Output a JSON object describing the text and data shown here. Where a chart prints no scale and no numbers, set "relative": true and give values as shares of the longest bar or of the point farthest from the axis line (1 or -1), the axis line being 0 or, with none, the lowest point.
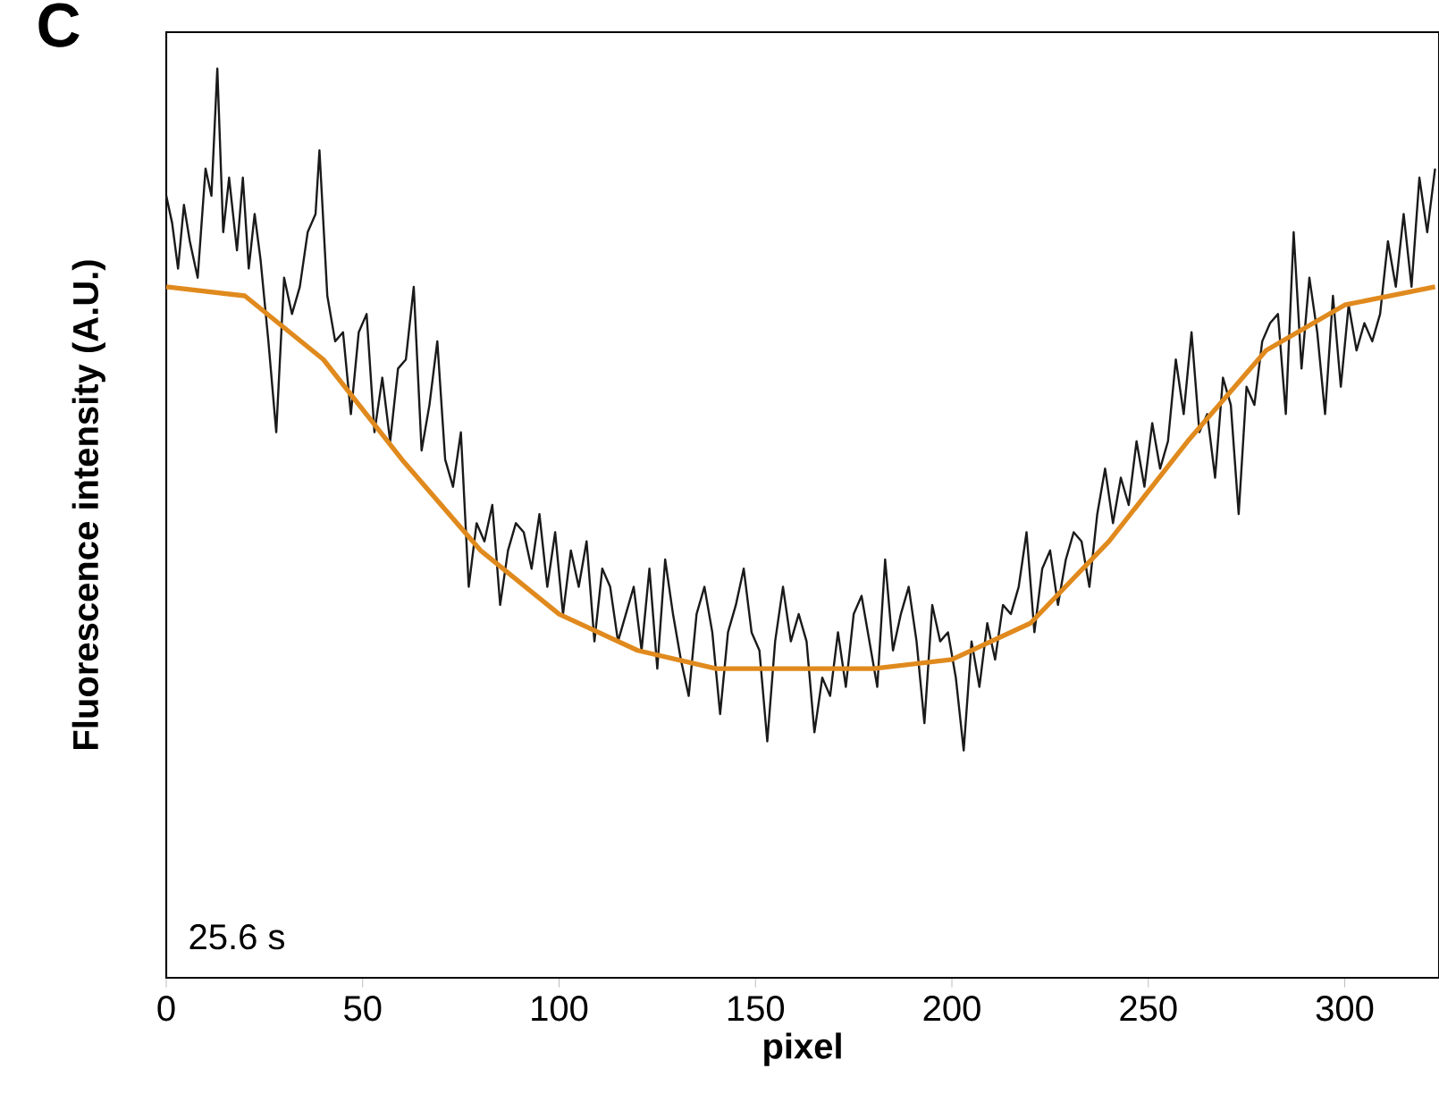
{
  "chart_data": {
    "type": "line",
    "relative": true,
    "xlabel": "pixel",
    "ylabel": "Fluorescence intensity (A.U.)",
    "annotations": [
      "C",
      "25.6 s"
    ],
    "xlim": [
      0,
      324
    ],
    "xticks": [
      0,
      50,
      100,
      150,
      200,
      250,
      300
    ],
    "grid": false,
    "marker": "none",
    "line_style": "solid",
    "series": [
      {
        "color": "#1a1a1a",
        "x": [
          0,
          1.5,
          3,
          4.5,
          6,
          8,
          10,
          11.5,
          13,
          14.5,
          16,
          18,
          19.5,
          21,
          22.5,
          24,
          26,
          28,
          30,
          32,
          34,
          36,
          38,
          39,
          41,
          43,
          45,
          47,
          49,
          51,
          53,
          55,
          57,
          59,
          61,
          63,
          65,
          67,
          69,
          71,
          73,
          75,
          77,
          79,
          81,
          83,
          85,
          87,
          89,
          91,
          93,
          95,
          97,
          99,
          101,
          103,
          105,
          107,
          109,
          111,
          113,
          115,
          117,
          119,
          121,
          123,
          125,
          127,
          129,
          131,
          133,
          135,
          137,
          139,
          141,
          143,
          145,
          147,
          149,
          151,
          153,
          155,
          157,
          159,
          161,
          163,
          165,
          167,
          169,
          171,
          173,
          175,
          177,
          179,
          181,
          183,
          185,
          187,
          189,
          191,
          193,
          195,
          197,
          199,
          201,
          203,
          205,
          207,
          209,
          211,
          213,
          215,
          217,
          219,
          221,
          223,
          225,
          227,
          229,
          231,
          233,
          235,
          237,
          239,
          241,
          243,
          245,
          247,
          249,
          251,
          253,
          255,
          257,
          259,
          261,
          263,
          265,
          267,
          269,
          271,
          273,
          275,
          277,
          279,
          281,
          283,
          285,
          287,
          289,
          291,
          293,
          295,
          297,
          299,
          301,
          303,
          305,
          307,
          309,
          311,
          313,
          315,
          317,
          319,
          321,
          323
        ],
        "values": [
          0.86,
          0.83,
          0.78,
          0.85,
          0.81,
          0.77,
          0.89,
          0.86,
          1.0,
          0.82,
          0.88,
          0.8,
          0.88,
          0.78,
          0.84,
          0.79,
          0.7,
          0.6,
          0.77,
          0.73,
          0.76,
          0.82,
          0.84,
          0.91,
          0.75,
          0.7,
          0.71,
          0.62,
          0.71,
          0.73,
          0.6,
          0.66,
          0.59,
          0.67,
          0.68,
          0.76,
          0.58,
          0.63,
          0.7,
          0.57,
          0.54,
          0.6,
          0.43,
          0.5,
          0.48,
          0.52,
          0.41,
          0.47,
          0.5,
          0.49,
          0.45,
          0.51,
          0.43,
          0.49,
          0.4,
          0.47,
          0.43,
          0.48,
          0.37,
          0.45,
          0.43,
          0.37,
          0.4,
          0.43,
          0.36,
          0.45,
          0.34,
          0.46,
          0.4,
          0.35,
          0.31,
          0.4,
          0.43,
          0.38,
          0.29,
          0.38,
          0.41,
          0.45,
          0.38,
          0.36,
          0.26,
          0.37,
          0.43,
          0.37,
          0.4,
          0.37,
          0.27,
          0.33,
          0.31,
          0.38,
          0.32,
          0.4,
          0.42,
          0.37,
          0.32,
          0.46,
          0.36,
          0.4,
          0.43,
          0.37,
          0.28,
          0.41,
          0.37,
          0.38,
          0.33,
          0.25,
          0.37,
          0.32,
          0.39,
          0.35,
          0.41,
          0.4,
          0.43,
          0.49,
          0.38,
          0.45,
          0.47,
          0.41,
          0.46,
          0.49,
          0.48,
          0.43,
          0.51,
          0.56,
          0.5,
          0.55,
          0.52,
          0.59,
          0.54,
          0.61,
          0.56,
          0.59,
          0.68,
          0.62,
          0.71,
          0.6,
          0.62,
          0.55,
          0.66,
          0.63,
          0.51,
          0.65,
          0.63,
          0.7,
          0.72,
          0.73,
          0.62,
          0.82,
          0.67,
          0.77,
          0.71,
          0.62,
          0.75,
          0.65,
          0.74,
          0.69,
          0.72,
          0.7,
          0.73,
          0.81,
          0.76,
          0.84,
          0.76,
          0.88,
          0.82,
          0.89
        ]
      },
      {
        "color": "#e08a1e",
        "x": [
          0,
          20,
          40,
          60,
          80,
          100,
          120,
          140,
          160,
          180,
          200,
          220,
          240,
          260,
          280,
          300,
          323
        ],
        "values": [
          0.76,
          0.75,
          0.68,
          0.57,
          0.47,
          0.4,
          0.36,
          0.34,
          0.34,
          0.34,
          0.35,
          0.39,
          0.48,
          0.59,
          0.69,
          0.74,
          0.76
        ]
      }
    ]
  }
}
